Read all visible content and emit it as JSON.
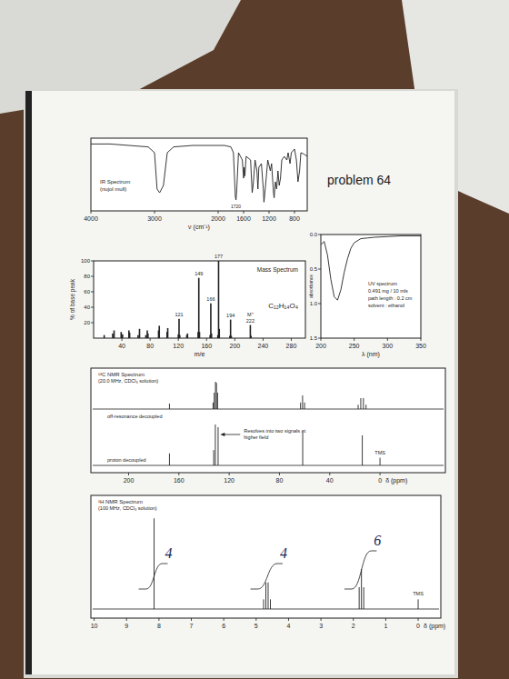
{
  "page": {
    "title": "problem 64"
  },
  "chart_data": [
    {
      "type": "line",
      "title": "IR Spectrum",
      "subtitle": "(nujol mull)",
      "x_label": "ν (cm⁻¹)",
      "xlim": [
        4000,
        600
      ],
      "xticks": [
        4000,
        3000,
        2000,
        1600,
        1200,
        800
      ],
      "ylim": [
        0,
        100
      ],
      "tick_labels": "x",
      "color": "#222222",
      "annotations": [
        {
          "x": 1720,
          "text": "1720"
        }
      ],
      "x": [
        4000,
        3700,
        3400,
        3100,
        3000,
        2960,
        2920,
        2860,
        2800,
        2700,
        2400,
        2000,
        1900,
        1800,
        1760,
        1730,
        1720,
        1710,
        1680,
        1620,
        1600,
        1590,
        1580,
        1560,
        1490,
        1465,
        1450,
        1420,
        1390,
        1375,
        1360,
        1320,
        1290,
        1280,
        1260,
        1220,
        1180,
        1160,
        1130,
        1120,
        1100,
        1080,
        1060,
        1040,
        1020,
        1000,
        960,
        920,
        900,
        870,
        850,
        800,
        770,
        745,
        720,
        700,
        650,
        600
      ],
      "values": [
        92,
        92,
        90,
        88,
        80,
        30,
        25,
        35,
        80,
        88,
        90,
        90,
        90,
        88,
        80,
        20,
        15,
        25,
        80,
        70,
        45,
        60,
        48,
        75,
        70,
        25,
        35,
        70,
        55,
        30,
        60,
        65,
        30,
        12,
        30,
        70,
        55,
        65,
        25,
        18,
        40,
        30,
        55,
        35,
        45,
        70,
        75,
        70,
        80,
        65,
        80,
        85,
        70,
        40,
        55,
        80,
        78,
        75
      ]
    },
    {
      "type": "bar",
      "title": "Mass Spectrum",
      "x_label": "m/e",
      "y_label": "% of base peak",
      "xlim": [
        0,
        300
      ],
      "xticks": [
        40,
        80,
        120,
        160,
        200,
        240,
        280
      ],
      "ylim": [
        0,
        100
      ],
      "yticks": [
        20,
        40,
        60,
        80,
        100
      ],
      "color": "#222222",
      "x": [
        15,
        27,
        29,
        39,
        41,
        50,
        51,
        63,
        65,
        74,
        76,
        77,
        92,
        93,
        104,
        105,
        120,
        121,
        122,
        132,
        133,
        148,
        149,
        150,
        165,
        166,
        167,
        176,
        177,
        178,
        193,
        194,
        195,
        222,
        223
      ],
      "values": [
        4,
        6,
        10,
        8,
        5,
        10,
        7,
        4,
        12,
        4,
        10,
        6,
        10,
        16,
        8,
        13,
        5,
        25,
        4,
        4,
        6,
        8,
        78,
        8,
        4,
        45,
        6,
        4,
        100,
        12,
        3,
        24,
        3,
        17,
        3
      ],
      "peak_labels": [
        177,
        149,
        166,
        121,
        194,
        222
      ],
      "annotations": [
        {
          "x": 222,
          "text": "M⁺"
        }
      ],
      "formula": "C₁₂H₁₄O₄"
    },
    {
      "type": "line",
      "title": "UV spectrum",
      "notes": [
        "0.491 mg / 10 mls",
        "path length : 0.2 cm",
        "solvent : ethanol"
      ],
      "x_label": "λ (nm)",
      "y_label": "absorbance",
      "xlim": [
        200,
        350
      ],
      "xticks": [
        200,
        250,
        300,
        350
      ],
      "ylim": [
        1.5,
        0
      ],
      "yticks": [
        {
          "value": 0,
          "label": "0.0"
        },
        0.5,
        {
          "value": 1,
          "label": "1.0"
        },
        1.5
      ],
      "color": "#222222",
      "x": [
        200,
        205,
        210,
        215,
        220,
        225,
        230,
        235,
        240,
        245,
        250,
        260,
        270,
        280,
        300,
        320,
        350
      ],
      "values": [
        0.15,
        0.1,
        0.3,
        0.65,
        0.9,
        0.95,
        0.8,
        0.55,
        0.35,
        0.2,
        0.12,
        0.06,
        0.05,
        0.04,
        0.03,
        0.02,
        0.02
      ]
    },
    {
      "type": "stick",
      "title": "¹³C NMR Spectrum",
      "subtitle": "(20.0 MHz, CDCl₃ solution)",
      "x_label": "δ (ppm)",
      "xlim": [
        230,
        -52
      ],
      "xticks": [
        200,
        160,
        120,
        80,
        40,
        0
      ],
      "tick_labels": "x",
      "color": "#222222",
      "series": [
        {
          "name": "off-resonance decoupled",
          "x": [
            167.5,
            132.8,
            131.9,
            130.9,
            130.1,
            129.2,
            63.2,
            61.6,
            60.0,
            17.4,
            15.3,
            13.2,
            11.1
          ],
          "values": [
            10,
            12,
            30,
            50,
            48,
            30,
            12,
            25,
            12,
            8,
            20,
            20,
            8
          ]
        },
        {
          "name": "proton decoupled",
          "x": [
            167.5,
            132.3,
            131.0,
            128.8,
            61.5,
            14.1,
            0
          ],
          "values": [
            22,
            28,
            75,
            70,
            60,
            55,
            14
          ]
        }
      ],
      "annotations": [
        {
          "x": 130,
          "text": "Resolves into two signals at higher field"
        }
      ],
      "labels": [
        {
          "x": 0,
          "text": "TMS"
        }
      ]
    },
    {
      "type": "stick",
      "title": "¹H NMR Spectrum",
      "subtitle": "(100 MHz, CDCl₃ solution)",
      "x_label": "δ (ppm)",
      "xlim": [
        10.1,
        -0.7
      ],
      "xticks": [
        10,
        9,
        8,
        7,
        6,
        5,
        4,
        3,
        2,
        1,
        0
      ],
      "tick_labels": "x",
      "color": "#222222",
      "x": [
        8.15,
        4.77,
        4.7,
        4.63,
        4.56,
        1.82,
        1.75,
        1.68,
        0
      ],
      "values": [
        75,
        8,
        22,
        22,
        8,
        18,
        33,
        18,
        8
      ],
      "integrals": [
        {
          "x": [
            8.4,
            7.9
          ],
          "value": 4
        },
        {
          "x": [
            4.95,
            4.35
          ],
          "value": 4
        },
        {
          "x": [
            2.05,
            1.45
          ],
          "value": 6
        }
      ],
      "labels": [
        {
          "x": 0,
          "text": "TMS"
        }
      ]
    }
  ]
}
